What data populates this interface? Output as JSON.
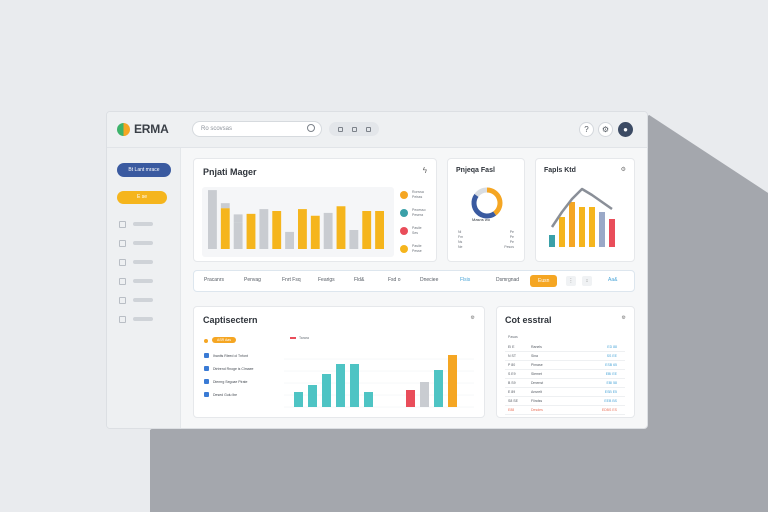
{
  "app": {
    "title": "ERMA",
    "search_placeholder": "Ro scovsas"
  },
  "header_icons": [
    "question-icon",
    "settings-icon",
    "avatar"
  ],
  "sidebar": {
    "primary_button": "Bt Lant mrace",
    "accent_button": "E se",
    "items": 6
  },
  "cards": {
    "manager": {
      "title": "Pnjati Mager",
      "menu_icon": "lightning-icon",
      "legend": [
        {
          "color": "#f5a623",
          "label": "Ronvsa",
          "sub": "Peisss"
        },
        {
          "color": "#3aa0a8",
          "label": "Peoesso",
          "sub": "Pesera"
        },
        {
          "color": "#e94d5a",
          "label": "Pasiie",
          "sub": "Ses"
        },
        {
          "color": "#f5b51d",
          "label": "Pasiie",
          "sub": "Pesse"
        }
      ],
      "chart_data": {
        "type": "bar",
        "series": [
          {
            "name": "gray",
            "color": "#c9ccd1",
            "values": [
              62,
              0,
              28,
              0,
              42,
              0,
              18,
              0,
              0,
              38,
              0,
              20,
              0,
              0
            ]
          },
          {
            "name": "orange",
            "color": "#f5b51d",
            "values": [
              0,
              43,
              0,
              37,
              0,
              40,
              0,
              42,
              35,
              0,
              45,
              0,
              40,
              40
            ]
          }
        ],
        "extra": [
          0,
          5,
          8,
          0,
          0,
          0,
          0,
          0,
          0,
          0,
          0,
          0,
          0,
          0
        ]
      }
    },
    "projects": {
      "title": "Pnjeqa Fasl",
      "center_label": "Masns wo",
      "rows": [
        [
          "Ni",
          "Pe"
        ],
        [
          "Fm",
          "Pe"
        ],
        [
          "Ns",
          "Pe"
        ],
        [
          "Ne",
          "Pesos"
        ]
      ],
      "chart_data": {
        "type": "pie",
        "slices": [
          {
            "label": "A",
            "value": 40,
            "color": "#f5a623"
          },
          {
            "label": "B",
            "value": 45,
            "color": "#3a5aa0"
          },
          {
            "label": "C",
            "value": 15,
            "color": "#d9dde2"
          }
        ]
      }
    },
    "rangetrend": {
      "title": "Fapls Ktd",
      "chart_data": {
        "type": "bar",
        "values": [
          12,
          30,
          45,
          40,
          40,
          35,
          28
        ],
        "colors": [
          "#3aa0a8",
          "#f5b51d",
          "#f5a623",
          "#f5b51d",
          "#f5b51d",
          "#9aa8c7",
          "#e94d5a"
        ],
        "trend": [
          20,
          35,
          48,
          58,
          52,
          45,
          38
        ]
      }
    },
    "contributions": {
      "title": "Captisectern",
      "badge": "ASR Aas",
      "items": [
        "Ihanlts Rleed ol Tnfont",
        "Dtrtrend Rnoge is Clmaee",
        "Diemrg Segoae Plrate",
        "Desed Gulu lbe"
      ],
      "legend_label": "Tarara",
      "chart_data": {
        "type": "bar",
        "values": [
          15,
          22,
          33,
          43,
          43,
          15,
          0,
          0,
          17,
          25,
          37,
          52
        ],
        "colors": [
          "#4ec4c4",
          "#4ec4c4",
          "#4ec4c4",
          "#4ec4c4",
          "#4ec4c4",
          "#4ec4c4",
          "#ffffff",
          "#ffffff",
          "#e94d5a",
          "#c9ccd1",
          "#4ec4c4",
          "#f5a623"
        ]
      }
    },
    "cost": {
      "title": "Cot esstral",
      "header_label": "Pasas",
      "rows": [
        [
          "Ei E",
          "Ranels",
          "ED 88"
        ],
        [
          "N ST",
          "Sina",
          "SS EE"
        ],
        [
          "P 80",
          "Pimase",
          "ESB 65"
        ],
        [
          "S E9",
          "Slemet",
          "EBI EE"
        ],
        [
          "B S9",
          "Dmenst",
          "EBI 58"
        ],
        [
          "E 89",
          "Ansrelt",
          "ESB E5"
        ],
        [
          "S8 SE",
          "Flindss",
          "EEB BS"
        ],
        [
          "E88",
          "Desdes",
          "EDBS ES"
        ]
      ]
    }
  },
  "tabs": [
    "Pracanrs",
    "Penvag",
    "Fnrt Fsq",
    "Fearigs",
    "Fld&",
    "Fsd o",
    "Dneciee",
    "Flsis",
    "Dsmrgnad",
    "Eusn",
    "Aa&"
  ]
}
